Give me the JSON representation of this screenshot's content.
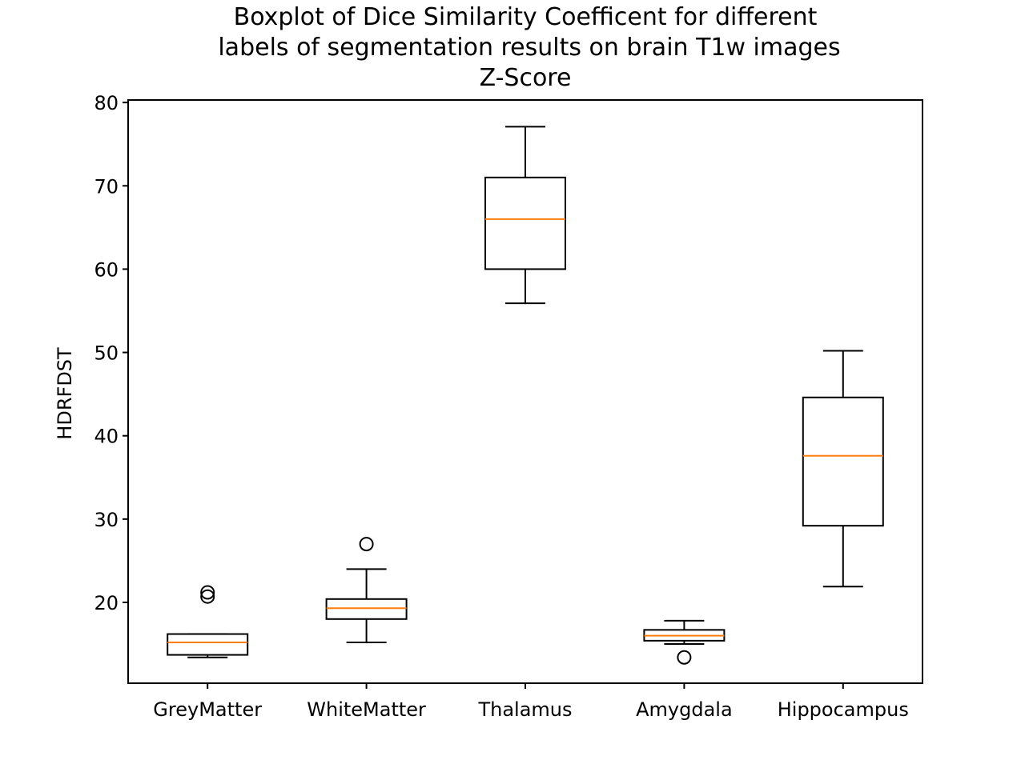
{
  "chart_data": {
    "type": "boxplot",
    "title_lines": [
      "Boxplot of Dice Similarity Coefficent for different",
      "labels of segmentation results on brain T1w images",
      "Z-Score"
    ],
    "xlabel": "",
    "ylabel": "HDRFDST",
    "ylim": [
      10.3,
      80.3
    ],
    "yticks": [
      20,
      30,
      40,
      50,
      60,
      70,
      80
    ],
    "grid": false,
    "categories": [
      "GreyMatter",
      "WhiteMatter",
      "Thalamus",
      "Amygdala",
      "Hippocampus"
    ],
    "boxes": [
      {
        "label": "GreyMatter",
        "whisker_low": 13.4,
        "q1": 13.7,
        "median": 15.2,
        "q3": 16.2,
        "whisker_high": 16.2,
        "outliers": [
          20.7,
          21.2
        ]
      },
      {
        "label": "WhiteMatter",
        "whisker_low": 15.2,
        "q1": 18.0,
        "median": 19.3,
        "q3": 20.4,
        "whisker_high": 24.0,
        "outliers": [
          27.0
        ]
      },
      {
        "label": "Thalamus",
        "whisker_low": 55.9,
        "q1": 60.0,
        "median": 66.0,
        "q3": 71.0,
        "whisker_high": 77.1,
        "outliers": []
      },
      {
        "label": "Amygdala",
        "whisker_low": 15.0,
        "q1": 15.4,
        "median": 16.0,
        "q3": 16.7,
        "whisker_high": 17.8,
        "outliers": [
          13.4
        ]
      },
      {
        "label": "Hippocampus",
        "whisker_low": 21.9,
        "q1": 29.2,
        "median": 37.6,
        "q3": 44.6,
        "whisker_high": 50.2,
        "outliers": []
      }
    ],
    "colors": {
      "box": "#000000",
      "median": "#ff7f0e",
      "outlier": "#000000"
    }
  }
}
